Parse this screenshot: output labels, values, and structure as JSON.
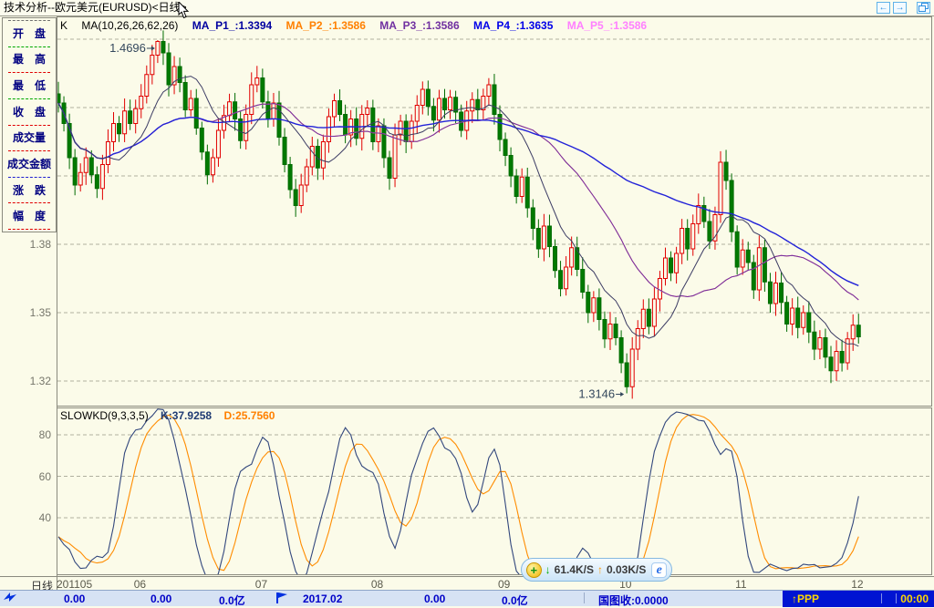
{
  "window": {
    "title": "技术分析--欧元美元(EURUSD)<日线>",
    "buttons": {
      "back": "←",
      "forward": "→"
    }
  },
  "header": {
    "k_label": "K",
    "ma_params": "MA(10,26,26,62,26)",
    "ma_values": [
      {
        "label": "MA_P1_:1.3394",
        "color": "#0000A0"
      },
      {
        "label": "MA_P2_:1.3586",
        "color": "#FF8000"
      },
      {
        "label": "MA_P3_:1.3586",
        "color": "#7030A0"
      },
      {
        "label": "MA_P4_:1.3635",
        "color": "#0000E8"
      },
      {
        "label": "MA_P5_:1.3586",
        "color": "#FF80FF"
      }
    ]
  },
  "sub_header": {
    "name": "SLOWKD(9,3,3,5)",
    "k_label": "K:37.9258",
    "k_color": "#1F3B73",
    "d_label": "D:25.7560",
    "d_color": "#FF8000"
  },
  "sidebar": {
    "top_divider": "#707070",
    "items": [
      {
        "label": "开　盘",
        "divider_color": "#00A800"
      },
      {
        "label": "最　高",
        "divider_color": "#E00000"
      },
      {
        "label": "最　低",
        "divider_color": "#00A800"
      },
      {
        "label": "收　盘",
        "divider_color": "#E00000"
      },
      {
        "label": "成交量",
        "divider_color": "#E00000"
      },
      {
        "label": "成交金额",
        "divider_color": "#2020D0"
      },
      {
        "label": "涨　跌",
        "divider_color": "#E00000"
      },
      {
        "label": "幅　度",
        "divider_color": "#E00000"
      }
    ]
  },
  "axis": {
    "period_label": "日线",
    "month_ticks": [
      {
        "label": "201105",
        "index": 0
      },
      {
        "label": "06",
        "index": 14
      },
      {
        "label": "07",
        "index": 36
      },
      {
        "label": "08",
        "index": 57
      },
      {
        "label": "09",
        "index": 80
      },
      {
        "label": "10",
        "index": 102
      },
      {
        "label": "11",
        "index": 123
      },
      {
        "label": "12",
        "index": 144
      }
    ]
  },
  "chart_data": [
    {
      "type": "candlestick",
      "panel": "main",
      "grid": true,
      "grid_color": "#B0B0A0",
      "up_color": "#E10000",
      "down_color": "#006B00",
      "down_fill": "#007A00",
      "first_open": 1.446,
      "closes": [
        1.442,
        1.433,
        1.418,
        1.406,
        1.4115,
        1.418,
        1.4105,
        1.4045,
        1.415,
        1.425,
        1.433,
        1.4285,
        1.4385,
        1.433,
        1.4395,
        1.445,
        1.4545,
        1.463,
        1.469,
        1.464,
        1.45,
        1.458,
        1.451,
        1.439,
        1.444,
        1.431,
        1.4205,
        1.4105,
        1.418,
        1.43,
        1.4365,
        1.4425,
        1.435,
        1.4255,
        1.437,
        1.45,
        1.453,
        1.4425,
        1.435,
        1.442,
        1.427,
        1.415,
        1.404,
        1.397,
        1.406,
        1.414,
        1.423,
        1.4135,
        1.425,
        1.436,
        1.443,
        1.437,
        1.428,
        1.435,
        1.4265,
        1.437,
        1.4398,
        1.425,
        1.432,
        1.418,
        1.409,
        1.428,
        1.434,
        1.425,
        1.434,
        1.441,
        1.448,
        1.4405,
        1.4345,
        1.444,
        1.439,
        1.4445,
        1.438,
        1.43,
        1.4385,
        1.4435,
        1.439,
        1.445,
        1.45,
        1.437,
        1.426,
        1.419,
        1.41,
        1.401,
        1.4095,
        1.396,
        1.387,
        1.378,
        1.388,
        1.379,
        1.3685,
        1.3605,
        1.37,
        1.3785,
        1.369,
        1.359,
        1.35,
        1.3565,
        1.347,
        1.3385,
        1.345,
        1.339,
        1.328,
        1.3175,
        1.334,
        1.343,
        1.3515,
        1.344,
        1.356,
        1.365,
        1.374,
        1.3675,
        1.376,
        1.387,
        1.378,
        1.389,
        1.397,
        1.39,
        1.3815,
        1.393,
        1.416,
        1.408,
        1.3855,
        1.37,
        1.3775,
        1.372,
        1.36,
        1.3785,
        1.3635,
        1.354,
        1.363,
        1.3545,
        1.345,
        1.352,
        1.3435,
        1.35,
        1.3415,
        1.334,
        1.339,
        1.3305,
        1.3245,
        1.333,
        1.328,
        1.3385,
        1.3445,
        1.3394
      ],
      "forced_points": {
        "18": {
          "high": 1.4696
        },
        "103": {
          "low": 1.3146
        }
      },
      "annotations": [
        {
          "label": "1.4696",
          "index": 18,
          "price": 1.4696,
          "kind": "high"
        },
        {
          "label": "1.3146",
          "index": 103,
          "price": 1.3146,
          "kind": "low"
        }
      ],
      "annotation_color": "#33475C",
      "moving_averages": [
        {
          "period": 26,
          "color": "#FF8000",
          "width": 1,
          "dotted": false
        },
        {
          "period": 26,
          "color": "#FF80FF",
          "width": 1.2,
          "dotted": true
        },
        {
          "period": 26,
          "color": "#7030A0",
          "width": 1,
          "dotted": false
        },
        {
          "period": 62,
          "color": "#2222D8",
          "width": 1.4,
          "dotted": false
        },
        {
          "period": 10,
          "color": "#3C3C64",
          "width": 1,
          "dotted": false
        }
      ],
      "grid_prices": [
        1.47,
        1.44,
        1.41,
        1.38,
        1.35,
        1.32
      ],
      "labeled_ticks": [
        {
          "label": "1.38",
          "price": 1.38
        },
        {
          "label": "1.35",
          "price": 1.35
        },
        {
          "label": "1.32",
          "price": 1.32
        }
      ],
      "ylim": [
        1.3092,
        1.4792
      ]
    },
    {
      "type": "line",
      "panel": "indicator",
      "name": "SLOWKD",
      "params": [
        9,
        3,
        3,
        5
      ],
      "derive": "stochastic_from_candles",
      "series": [
        {
          "name": "K",
          "color": "#32477D",
          "last_value": 37.9258
        },
        {
          "name": "D",
          "color": "#FF8C00",
          "last_value": 25.756
        }
      ],
      "grid_values": [
        80,
        60,
        40
      ],
      "labeled_ticks": [
        {
          "label": "80",
          "value": 80
        },
        {
          "label": "60",
          "value": 60
        },
        {
          "label": "40",
          "value": 40
        }
      ],
      "ylim": [
        13,
        93
      ]
    }
  ],
  "status_bar": {
    "items": [
      "0.00",
      "0.00",
      "0.0亿",
      "2017.02",
      "0.00",
      "0.0亿",
      "国图收:0.0000"
    ],
    "ppp_label": "↑PPP",
    "clock": "00:00"
  },
  "net_widget": {
    "coin_glyph": "+",
    "down_arrow": "↓",
    "down_label": "61.4K/S",
    "up_arrow": "↑",
    "up_label": "0.03K/S",
    "ie_glyph": "e"
  }
}
